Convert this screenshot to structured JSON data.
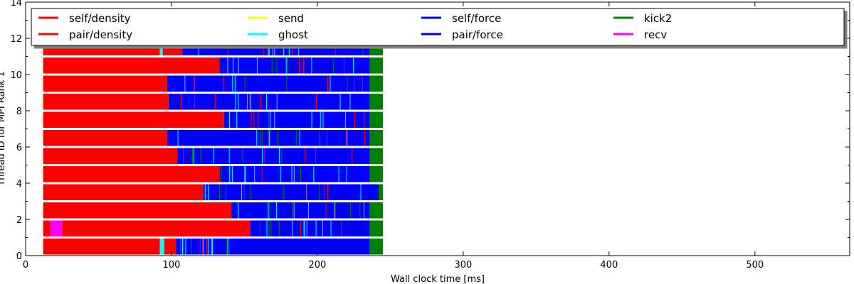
{
  "chart_data": {
    "type": "bar",
    "orientation": "horizontal-timeline",
    "xlabel": "Wall clock time [ms]",
    "ylabel": "Thread ID for MPI Rank 1",
    "xlim": [
      0,
      565
    ],
    "ylim": [
      0,
      14
    ],
    "xticks": [
      "0",
      "100",
      "200",
      "300",
      "400",
      "500"
    ],
    "yticks": [
      "0",
      "2",
      "4",
      "6",
      "8",
      "10",
      "12",
      "14"
    ],
    "grid": false,
    "legend_position": "top",
    "legend": [
      {
        "name": "self/density",
        "color": "#ff0000"
      },
      {
        "name": "pair/density",
        "color": "#ff0000"
      },
      {
        "name": "send",
        "color": "#ffff00"
      },
      {
        "name": "ghost",
        "color": "#00ffff"
      },
      {
        "name": "self/force",
        "color": "#0000ff"
      },
      {
        "name": "pair/force",
        "color": "#0000ff"
      },
      {
        "name": "kick2",
        "color": "#008000"
      },
      {
        "name": "recv",
        "color": "#ff00ff"
      }
    ],
    "threads": [
      {
        "thread": 0,
        "end": 245,
        "segments": [
          {
            "type": "self/density",
            "start": 12,
            "end": 92
          },
          {
            "type": "ghost",
            "start": 92,
            "end": 95
          },
          {
            "type": "pair/density",
            "start": 95,
            "end": 103
          },
          {
            "type": "self/force",
            "start": 103,
            "end": 140
          },
          {
            "type": "pair/force",
            "start": 140,
            "end": 236
          },
          {
            "type": "kick2",
            "start": 236,
            "end": 245
          }
        ]
      },
      {
        "thread": 1,
        "end": 245,
        "segments": [
          {
            "type": "pair/density",
            "start": 12,
            "end": 17
          },
          {
            "type": "recv",
            "start": 17,
            "end": 25
          },
          {
            "type": "pair/density",
            "start": 25,
            "end": 154
          },
          {
            "type": "pair/force",
            "start": 154,
            "end": 236
          },
          {
            "type": "kick2",
            "start": 236,
            "end": 245
          }
        ]
      },
      {
        "thread": 2,
        "end": 245,
        "segments": [
          {
            "type": "self/density",
            "start": 12,
            "end": 141
          },
          {
            "type": "pair/force",
            "start": 141,
            "end": 236
          },
          {
            "type": "kick2",
            "start": 236,
            "end": 245
          }
        ]
      },
      {
        "thread": 3,
        "end": 245,
        "segments": [
          {
            "type": "pair/density",
            "start": 12,
            "end": 122
          },
          {
            "type": "pair/force",
            "start": 122,
            "end": 242
          },
          {
            "type": "kick2",
            "start": 242,
            "end": 245
          }
        ]
      },
      {
        "thread": 4,
        "end": 245,
        "segments": [
          {
            "type": "self/density",
            "start": 12,
            "end": 133
          },
          {
            "type": "pair/force",
            "start": 133,
            "end": 236
          },
          {
            "type": "kick2",
            "start": 236,
            "end": 245
          }
        ]
      },
      {
        "thread": 5,
        "end": 245,
        "segments": [
          {
            "type": "pair/density",
            "start": 12,
            "end": 104
          },
          {
            "type": "pair/force",
            "start": 104,
            "end": 236
          },
          {
            "type": "kick2",
            "start": 236,
            "end": 245
          }
        ]
      },
      {
        "thread": 6,
        "end": 245,
        "segments": [
          {
            "type": "self/density",
            "start": 12,
            "end": 97
          },
          {
            "type": "pair/force",
            "start": 97,
            "end": 236
          },
          {
            "type": "kick2",
            "start": 236,
            "end": 245
          }
        ]
      },
      {
        "thread": 7,
        "end": 245,
        "segments": [
          {
            "type": "pair/density",
            "start": 12,
            "end": 136
          },
          {
            "type": "pair/force",
            "start": 136,
            "end": 236
          },
          {
            "type": "kick2",
            "start": 236,
            "end": 245
          }
        ]
      },
      {
        "thread": 8,
        "end": 245,
        "segments": [
          {
            "type": "self/density",
            "start": 12,
            "end": 98
          },
          {
            "type": "pair/force",
            "start": 98,
            "end": 236
          },
          {
            "type": "kick2",
            "start": 236,
            "end": 245
          }
        ]
      },
      {
        "thread": 9,
        "end": 245,
        "segments": [
          {
            "type": "pair/density",
            "start": 12,
            "end": 97
          },
          {
            "type": "pair/force",
            "start": 97,
            "end": 236
          },
          {
            "type": "kick2",
            "start": 236,
            "end": 245
          }
        ]
      },
      {
        "thread": 10,
        "end": 245,
        "segments": [
          {
            "type": "self/density",
            "start": 12,
            "end": 133
          },
          {
            "type": "pair/force",
            "start": 133,
            "end": 236
          },
          {
            "type": "kick2",
            "start": 236,
            "end": 245
          }
        ]
      },
      {
        "thread": 11,
        "end": 245,
        "segments": [
          {
            "type": "pair/density",
            "start": 12,
            "end": 92
          },
          {
            "type": "ghost",
            "start": 92,
            "end": 94
          },
          {
            "type": "pair/density",
            "start": 94,
            "end": 107
          },
          {
            "type": "pair/force",
            "start": 107,
            "end": 236
          },
          {
            "type": "kick2",
            "start": 236,
            "end": 245
          }
        ]
      }
    ]
  }
}
